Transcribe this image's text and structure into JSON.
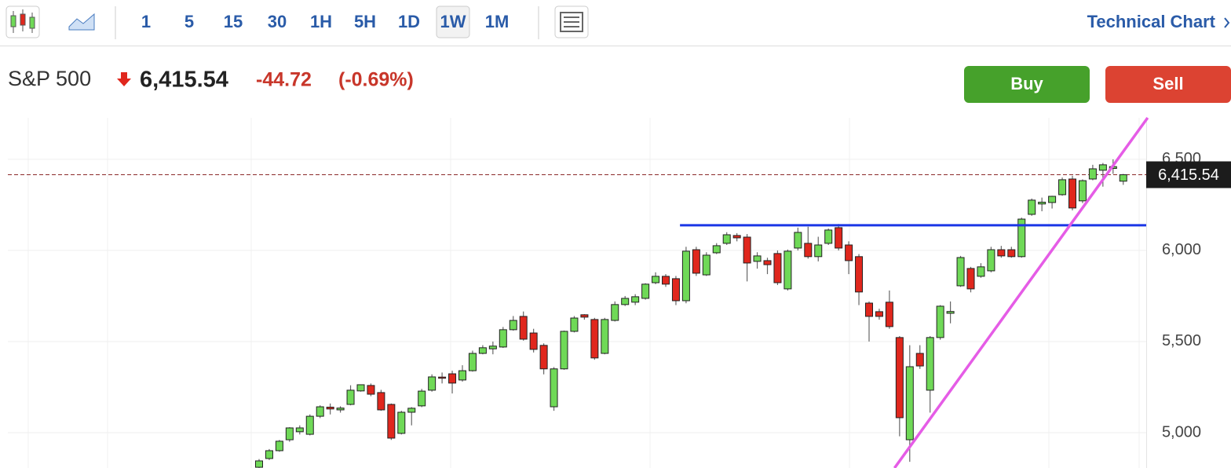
{
  "toolbar": {
    "intervals": [
      "1",
      "5",
      "15",
      "30",
      "1H",
      "5H",
      "1D",
      "1W",
      "1M"
    ],
    "active_interval": "1W",
    "link": "Technical Chart"
  },
  "quote": {
    "name": "S&P 500",
    "change": "-44.72",
    "change_percent": "(-0.69%)"
  },
  "buttons": {
    "buy": "Buy",
    "sell": "Sell"
  },
  "chart_data": {
    "type": "candlestick",
    "categories": [
      null,
      null,
      null,
      null,
      null,
      null,
      null,
      null,
      null,
      null,
      null,
      null,
      null,
      null,
      null,
      null,
      null,
      null,
      null,
      null,
      null,
      null,
      null,
      null,
      null,
      null,
      null,
      null,
      null,
      null,
      null,
      null,
      null,
      null,
      null,
      null,
      null,
      null,
      null,
      null,
      null,
      null,
      null,
      null,
      null,
      null,
      null,
      null,
      null,
      null,
      null,
      null,
      null,
      null,
      null,
      null,
      null,
      null,
      null,
      null,
      null,
      null,
      null,
      null,
      null,
      null,
      null,
      null,
      null,
      null,
      null,
      null,
      null,
      null,
      null,
      null,
      null,
      null,
      null,
      null,
      null,
      null,
      null,
      null,
      null,
      null
    ],
    "open": [
      4810,
      4858,
      4901,
      4961,
      5005,
      4991,
      5090,
      5140,
      5125,
      5155,
      5229,
      5259,
      5220,
      5155,
      4996,
      5112,
      5147,
      5233,
      5305,
      5323,
      5289,
      5340,
      5435,
      5460,
      5470,
      5565,
      5638,
      5547,
      5479,
      5142,
      5350,
      5556,
      5647,
      5621,
      5435,
      5616,
      5703,
      5716,
      5737,
      5823,
      5858,
      5845,
      5724,
      6004,
      5866,
      5987,
      6039,
      6082,
      6073,
      5940,
      5944,
      5983,
      5789,
      6013,
      6039,
      5966,
      6039,
      6125,
      6030,
      5966,
      5711,
      5664,
      5716,
      5522,
      4961,
      5435,
      5233,
      5522,
      5655,
      5806,
      5901,
      5858,
      5888,
      6004,
      6004,
      5966,
      6198,
      6255,
      6263,
      6306,
      6392,
      6272,
      6392,
      6440,
      6450,
      6380
    ],
    "high": [
      4855,
      4910,
      4960,
      5030,
      5040,
      5100,
      5150,
      5160,
      5145,
      5260,
      5265,
      5270,
      5235,
      5160,
      5120,
      5140,
      5240,
      5320,
      5330,
      5340,
      5370,
      5450,
      5480,
      5500,
      5580,
      5640,
      5665,
      5570,
      5490,
      5360,
      5560,
      5640,
      5650,
      5630,
      5630,
      5720,
      5750,
      5760,
      5820,
      5880,
      5870,
      5860,
      6020,
      6020,
      5990,
      6040,
      6100,
      6095,
      6090,
      5990,
      5960,
      6000,
      6005,
      6125,
      6130,
      6075,
      6120,
      6145,
      6050,
      5980,
      5720,
      5680,
      5780,
      5530,
      5480,
      5480,
      5530,
      5700,
      5720,
      5970,
      5910,
      5930,
      6020,
      6025,
      6020,
      6180,
      6285,
      6290,
      6300,
      6400,
      6410,
      6390,
      6470,
      6480,
      6500,
      6420
    ],
    "low": [
      4800,
      4850,
      4895,
      4950,
      4990,
      4985,
      5080,
      5100,
      5110,
      5150,
      5225,
      5200,
      5120,
      4960,
      4990,
      5040,
      5140,
      5225,
      5270,
      5215,
      5280,
      5335,
      5430,
      5430,
      5465,
      5560,
      5505,
      5440,
      5320,
      5120,
      5345,
      5550,
      5620,
      5400,
      5430,
      5610,
      5695,
      5700,
      5730,
      5815,
      5800,
      5700,
      5710,
      5860,
      5860,
      5980,
      6030,
      6050,
      5830,
      5900,
      5870,
      5810,
      5780,
      6000,
      5955,
      5940,
      6030,
      6000,
      5870,
      5700,
      5500,
      5620,
      5570,
      4980,
      4840,
      5350,
      5110,
      5510,
      5600,
      5800,
      5770,
      5850,
      5880,
      5960,
      5960,
      5960,
      6190,
      6215,
      6230,
      6300,
      6220,
      6260,
      6385,
      6350,
      6420,
      6360
    ],
    "close": [
      4845,
      4901,
      4953,
      5026,
      5026,
      5090,
      5142,
      5130,
      5135,
      5233,
      5263,
      5211,
      5125,
      4970,
      5112,
      5134,
      5228,
      5306,
      5300,
      5272,
      5340,
      5435,
      5466,
      5475,
      5565,
      5616,
      5513,
      5457,
      5350,
      5350,
      5556,
      5629,
      5634,
      5410,
      5621,
      5703,
      5737,
      5746,
      5815,
      5858,
      5815,
      5724,
      5996,
      5875,
      5974,
      6026,
      6086,
      6069,
      5931,
      5970,
      5922,
      5823,
      5996,
      6099,
      5966,
      6030,
      6112,
      6013,
      5944,
      5772,
      5638,
      5638,
      5582,
      5082,
      5362,
      5366,
      5522,
      5694,
      5665,
      5961,
      5789,
      5910,
      6004,
      5970,
      5966,
      6172,
      6276,
      6265,
      6297,
      6388,
      6233,
      6383,
      6448,
      6470,
      6460,
      6415.54
    ],
    "up_color": "#6fd957",
    "down_color": "#e0271d",
    "ylim": [
      4806,
      6728
    ],
    "yticks": [
      {
        "value": 5000,
        "label": "5,000"
      },
      {
        "value": 5500,
        "label": "5,500"
      },
      {
        "value": 6000,
        "label": "6,000"
      },
      {
        "value": 6500,
        "label": "6,500"
      }
    ],
    "grid": true,
    "last_price": {
      "value": 6415.54,
      "label": "6,415.54"
    },
    "hline": {
      "value": 6138,
      "x": [
        41.4,
        91.4
      ],
      "color": "#1a36e6"
    },
    "trendline": {
      "x": [
        62.5,
        87.4
      ],
      "y": [
        4806,
        6728
      ],
      "color": "#e55ce6"
    }
  }
}
